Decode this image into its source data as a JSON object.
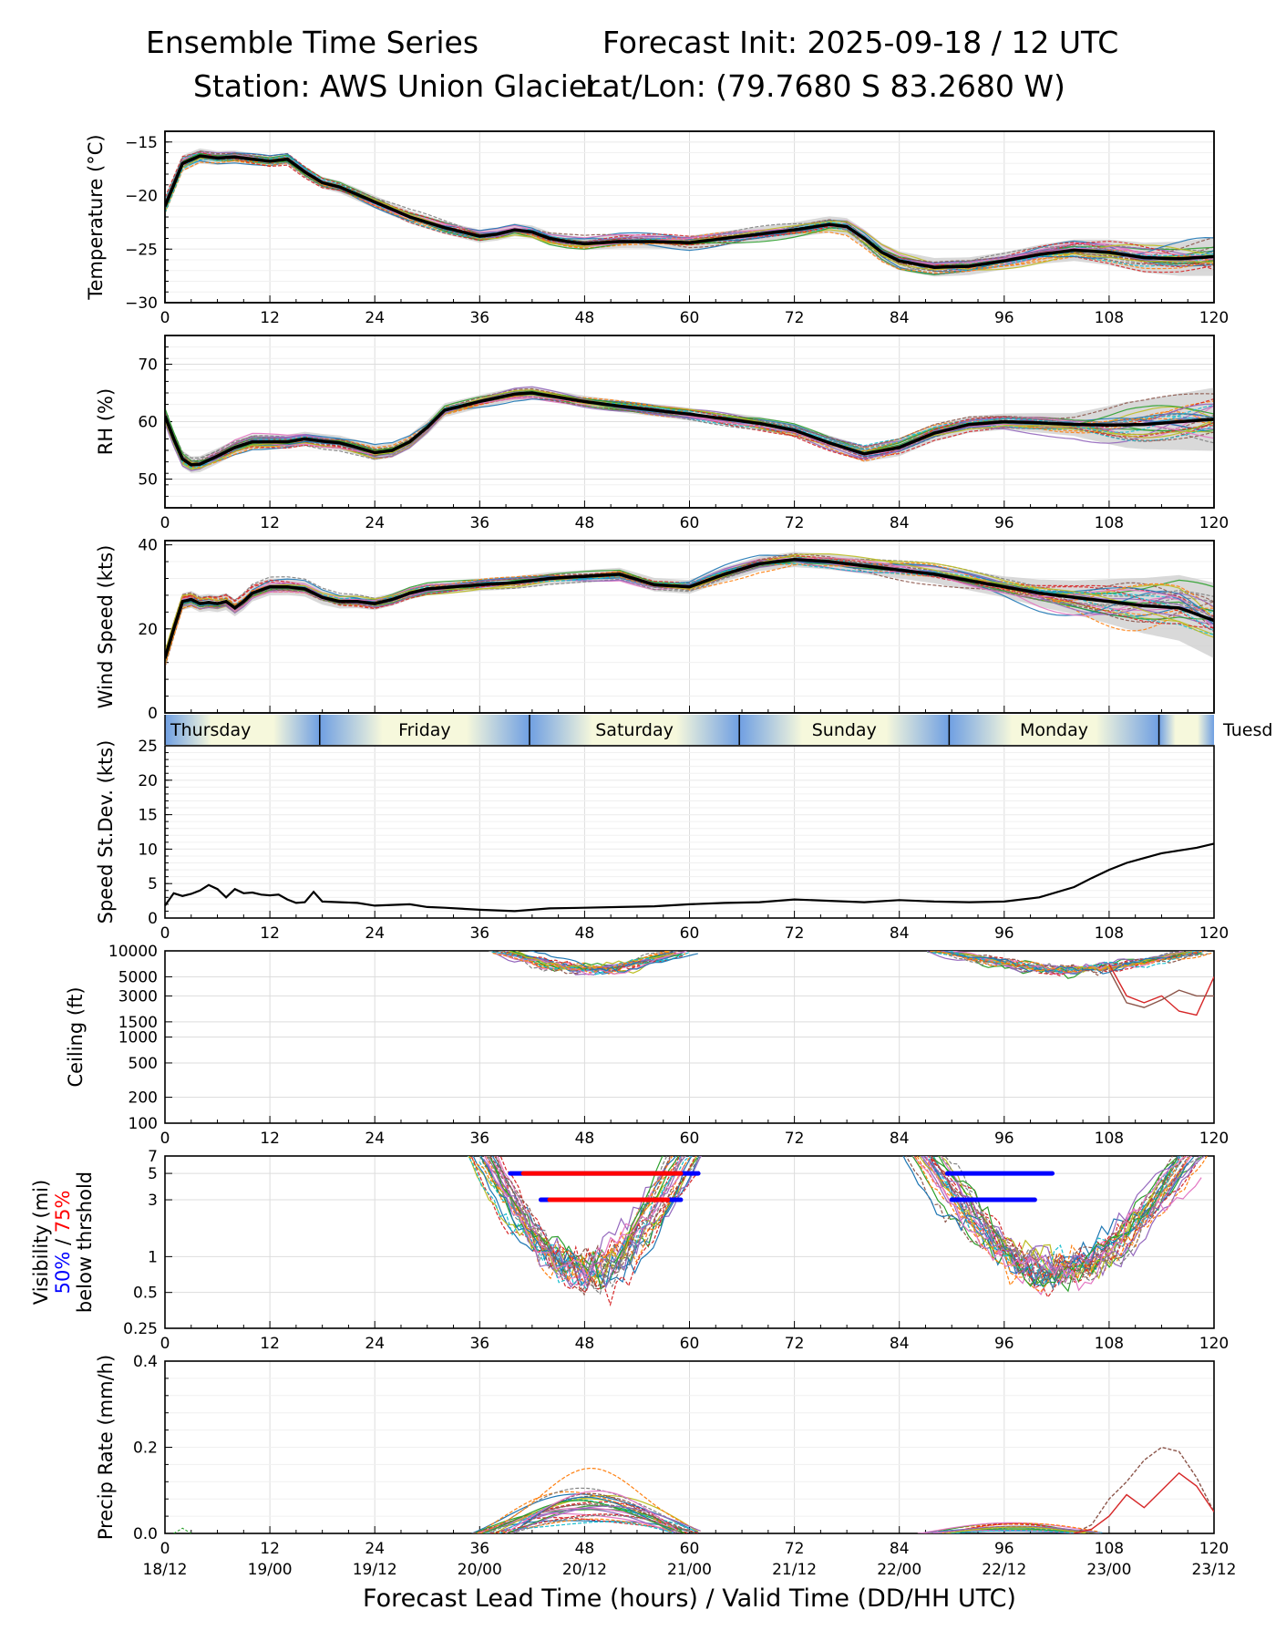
{
  "header": {
    "title_left": "Ensemble Time Series",
    "title_right": "Forecast Init: 2025-09-18 / 12 UTC",
    "station": "Station: AWS Union Glacier",
    "latlon": "Lat/Lon: (79.7680 S 83.2680 W)"
  },
  "x_axis": {
    "range": [
      0,
      120
    ],
    "ticks": [
      0,
      12,
      24,
      36,
      48,
      60,
      72,
      84,
      96,
      108,
      120
    ],
    "valid_times": [
      "18/12",
      "19/00",
      "19/12",
      "20/00",
      "20/12",
      "21/00",
      "21/12",
      "22/00",
      "22/12",
      "23/00",
      "23/12"
    ],
    "xlabel": "Forecast Lead Time (hours) / Valid Time (DD/HH UTC)"
  },
  "day_bar": {
    "days": [
      {
        "name": "Thursday",
        "start": 0,
        "end": 17.7
      },
      {
        "name": "Friday",
        "start": 17.7,
        "end": 41.7
      },
      {
        "name": "Saturday",
        "start": 41.7,
        "end": 65.7
      },
      {
        "name": "Sunday",
        "start": 65.7,
        "end": 89.7
      },
      {
        "name": "Monday",
        "start": 89.7,
        "end": 113.7
      },
      {
        "name": "Tuesd",
        "start": 113.7,
        "end": 120
      }
    ]
  },
  "legend": {
    "vis_label_1": "Visibility (mi)",
    "vis_label_pct50": "50%",
    "vis_label_sep": " / ",
    "vis_label_pct75": "75%",
    "vis_label_3": "below thrshold"
  },
  "colors": {
    "mean": "#000000",
    "p50": "#0000ff",
    "p75": "#ff0000",
    "spread": "#d0d0d0",
    "members": [
      "#1f77b4",
      "#ff7f0e",
      "#2ca02c",
      "#d62728",
      "#9467bd",
      "#8c564b",
      "#e377c2",
      "#7f7f7f",
      "#bcbd22",
      "#17becf"
    ]
  },
  "chart_data": [
    {
      "type": "line",
      "id": "temp",
      "ylabel": "Temperature (°C)",
      "ylim": [
        -30,
        -14
      ],
      "yticks": [
        -30,
        -25,
        -20,
        -15
      ],
      "ytick_labels": [
        "−30",
        "−25",
        "−20",
        "−15"
      ],
      "mean": {
        "x": [
          0,
          1,
          2,
          4,
          6,
          8,
          10,
          12,
          14,
          16,
          18,
          20,
          24,
          28,
          32,
          36,
          38,
          40,
          42,
          44,
          46,
          48,
          52,
          56,
          60,
          64,
          68,
          72,
          76,
          78,
          80,
          82,
          84,
          88,
          92,
          96,
          100,
          104,
          108,
          112,
          116,
          120
        ],
        "y": [
          -21,
          -19,
          -17,
          -16.3,
          -16.5,
          -16.4,
          -16.6,
          -16.8,
          -16.6,
          -17.8,
          -18.8,
          -19.2,
          -20.6,
          -22,
          -23,
          -23.8,
          -23.6,
          -23.2,
          -23.4,
          -24,
          -24.3,
          -24.5,
          -24.3,
          -24.3,
          -24.4,
          -24,
          -23.6,
          -23.2,
          -22.7,
          -22.9,
          -24,
          -25.3,
          -26.1,
          -26.7,
          -26.6,
          -26.1,
          -25.5,
          -25.1,
          -25.3,
          -25.8,
          -25.9,
          -25.7
        ]
      },
      "spread_sd": {
        "x": [
          0,
          12,
          24,
          48,
          72,
          84,
          96,
          104,
          110,
          120
        ],
        "y": [
          0.8,
          0.5,
          0.6,
          0.6,
          0.7,
          0.9,
          0.8,
          1.0,
          1.3,
          1.8
        ]
      }
    },
    {
      "type": "line",
      "id": "rh",
      "ylabel": "RH (%)",
      "ylim": [
        45,
        75
      ],
      "yticks": [
        50,
        60,
        70
      ],
      "ytick_labels": [
        "50",
        "60",
        "70"
      ],
      "mean": {
        "x": [
          0,
          1,
          2,
          3,
          4,
          6,
          8,
          10,
          12,
          14,
          16,
          18,
          20,
          22,
          24,
          26,
          28,
          30,
          32,
          36,
          40,
          42,
          44,
          48,
          52,
          56,
          60,
          64,
          68,
          72,
          76,
          80,
          84,
          88,
          92,
          96,
          100,
          104,
          108,
          112,
          116,
          120
        ],
        "y": [
          61,
          57,
          53.5,
          52.5,
          52.6,
          54,
          55.5,
          56.5,
          56.5,
          56.5,
          57,
          56.6,
          56.3,
          55.5,
          54.6,
          55,
          56.5,
          59,
          62,
          63.5,
          64.8,
          65,
          64.5,
          63.5,
          62.7,
          62,
          61.3,
          60.5,
          59.7,
          58.5,
          56.3,
          54.4,
          55.5,
          58,
          59.5,
          60,
          59.8,
          59.5,
          59.4,
          59.5,
          60,
          60.4
        ]
      },
      "spread_sd": {
        "x": [
          0,
          12,
          24,
          48,
          72,
          84,
          96,
          104,
          110,
          120
        ],
        "y": [
          1.5,
          1.2,
          1.3,
          1.0,
          1.2,
          1.5,
          1.4,
          2.0,
          4.0,
          5.5
        ]
      }
    },
    {
      "type": "line",
      "id": "wind",
      "ylabel": "Wind Speed (kts)",
      "ylim": [
        0,
        41
      ],
      "yticks": [
        0,
        20,
        40
      ],
      "ytick_labels": [
        "0",
        "20",
        "40"
      ],
      "mean": {
        "x": [
          0,
          1,
          2,
          3,
          4,
          5,
          6,
          7,
          8,
          9,
          10,
          12,
          14,
          16,
          18,
          20,
          22,
          24,
          26,
          28,
          30,
          36,
          40,
          44,
          48,
          52,
          56,
          60,
          64,
          68,
          72,
          76,
          80,
          84,
          88,
          92,
          96,
          100,
          104,
          108,
          112,
          116,
          120
        ],
        "y": [
          13,
          20,
          26.5,
          27,
          26,
          26.3,
          26,
          26.5,
          25,
          26.5,
          28.5,
          30,
          30,
          29.5,
          27.5,
          26.5,
          26.5,
          26,
          27,
          28.5,
          29.5,
          30.5,
          31,
          32,
          32.5,
          33,
          30.5,
          30,
          33,
          35.5,
          36.5,
          36,
          35,
          34,
          33,
          31.5,
          30,
          28.5,
          27.5,
          26.5,
          25.5,
          25,
          22
        ]
      },
      "spread_sd": {
        "x": [
          0,
          12,
          24,
          48,
          72,
          84,
          96,
          104,
          110,
          120
        ],
        "y": [
          2,
          2,
          1.5,
          1.5,
          1.8,
          2,
          2.5,
          4,
          6,
          9
        ]
      }
    },
    {
      "type": "line",
      "id": "sd",
      "ylabel": "Speed St.Dev. (kts)",
      "ylim": [
        0,
        25
      ],
      "yticks": [
        0,
        5,
        10,
        15,
        20,
        25
      ],
      "ytick_labels": [
        "0",
        "5",
        "10",
        "15",
        "20",
        "25"
      ],
      "series": [
        {
          "name": "speed st.dev.",
          "x": [
            0,
            1,
            2,
            3,
            4,
            5,
            6,
            7,
            8,
            9,
            10,
            11,
            12,
            13,
            14,
            15,
            16,
            17,
            18,
            20,
            22,
            24,
            26,
            28,
            30,
            32,
            36,
            40,
            44,
            48,
            52,
            56,
            60,
            64,
            68,
            72,
            76,
            80,
            84,
            88,
            92,
            96,
            100,
            104,
            106,
            108,
            110,
            112,
            114,
            116,
            118,
            120
          ],
          "y": [
            1.8,
            3.6,
            3.2,
            3.5,
            4,
            4.8,
            4.2,
            3,
            4.2,
            3.6,
            3.7,
            3.4,
            3.3,
            3.4,
            2.7,
            2.2,
            2.3,
            3.8,
            2.4,
            2.3,
            2.2,
            1.8,
            1.9,
            2.0,
            1.6,
            1.5,
            1.2,
            1.0,
            1.4,
            1.5,
            1.6,
            1.7,
            2.0,
            2.2,
            2.3,
            2.7,
            2.5,
            2.3,
            2.6,
            2.4,
            2.3,
            2.4,
            3.0,
            4.5,
            5.8,
            7.0,
            8.0,
            8.7,
            9.4,
            9.8,
            10.2,
            10.8
          ]
        }
      ]
    },
    {
      "type": "line",
      "id": "ceiling",
      "ylabel": "Ceiling (ft)",
      "yscale": "log",
      "ylim": [
        100,
        10000
      ],
      "yticks": [
        100,
        200,
        500,
        1000,
        1500,
        3000,
        5000,
        10000
      ],
      "ytick_labels": [
        "100",
        "200",
        "500",
        "1000",
        "1500",
        "3000",
        "5000",
        "10000"
      ],
      "windows": [
        [
          37,
          61
        ],
        [
          87,
          120
        ]
      ],
      "ref_curves": [
        {
          "x": [
            108,
            110,
            112,
            114,
            116,
            118,
            120
          ],
          "y": [
            7000,
            3000,
            2500,
            3000,
            2000,
            1800,
            5000
          ],
          "color": "#d62728"
        },
        {
          "x": [
            108,
            110,
            112,
            114,
            116,
            118,
            120
          ],
          "y": [
            6000,
            2500,
            2200,
            2700,
            3500,
            3000,
            3000
          ],
          "color": "#8c564b"
        }
      ]
    },
    {
      "type": "line",
      "id": "vis",
      "ylabel": "Visibility (mi) 50% / 75% below thrshold",
      "yscale": "log",
      "ylim": [
        0.25,
        7
      ],
      "yticks": [
        0.25,
        0.5,
        1,
        3,
        5,
        7
      ],
      "ytick_labels": [
        "0.25",
        "0.5",
        "1",
        "3",
        "5",
        "7"
      ],
      "bands": [
        {
          "label": "50% below 5 mi",
          "color": "#0000ff",
          "y": 5,
          "x": [
            39.5,
            61
          ]
        },
        {
          "label": "75% below 5 mi",
          "color": "#ff0000",
          "y": 5,
          "x": [
            41,
            59
          ]
        },
        {
          "label": "50% below 3 mi",
          "color": "#0000ff",
          "y": 3,
          "x": [
            43,
            59
          ]
        },
        {
          "label": "75% below 3 mi",
          "color": "#ff0000",
          "y": 3,
          "x": [
            44,
            57.5
          ]
        },
        {
          "label": "50% below 5 mi (2)",
          "color": "#0000ff",
          "y": 5,
          "x": [
            89.5,
            101.5
          ]
        },
        {
          "label": "50% below 3 mi (2)",
          "color": "#0000ff",
          "y": 3,
          "x": [
            90,
            99.5
          ]
        }
      ],
      "windows": [
        [
          34,
          62
        ],
        [
          84,
          120
        ]
      ]
    },
    {
      "type": "line",
      "id": "precip",
      "ylabel": "Precip Rate (mm/h)",
      "ylim": [
        0,
        0.4
      ],
      "yticks": [
        0.0,
        0.2,
        0.4
      ],
      "ytick_labels": [
        "0.0",
        "0.2",
        "0.4"
      ],
      "ref_curves": [
        {
          "x": [
            104,
            106,
            108,
            110,
            112,
            114,
            116,
            118,
            120
          ],
          "y": [
            0,
            0.02,
            0.08,
            0.12,
            0.17,
            0.2,
            0.19,
            0.13,
            0.05
          ],
          "color": "#8c564b"
        },
        {
          "x": [
            104,
            106,
            108,
            110,
            112,
            114,
            116,
            118,
            120
          ],
          "y": [
            0,
            0.01,
            0.04,
            0.09,
            0.06,
            0.1,
            0.14,
            0.11,
            0.05
          ],
          "color": "#d62728"
        }
      ]
    }
  ]
}
